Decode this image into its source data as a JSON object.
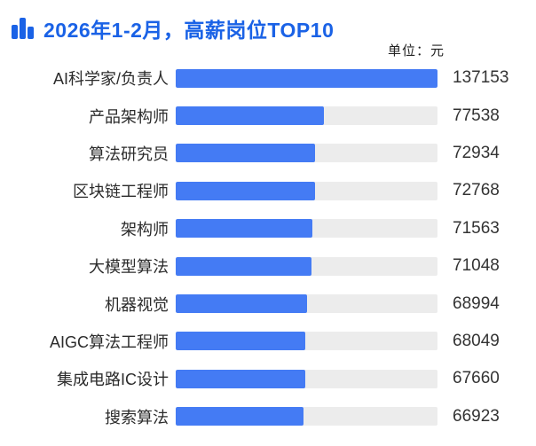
{
  "header": {
    "title": "2026年1-2月，高薪岗位TOP10",
    "unit_label": "单位：元",
    "icon": "bar-chart-icon"
  },
  "colors": {
    "accent": "#1a62e6",
    "bar_fill": "#447bf4",
    "bar_track": "#ececec",
    "label_text": "#2b2b2b",
    "value_text": "#333333",
    "background": "#ffffff"
  },
  "chart_data": {
    "type": "bar",
    "orientation": "horizontal",
    "title": "2026年1-2月，高薪岗位TOP10",
    "unit": "元",
    "categories": [
      "AI科学家/负责人",
      "产品架构师",
      "算法研究员",
      "区块链工程师",
      "架构师",
      "大模型算法",
      "机器视觉",
      "AIGC算法工程师",
      "集成电路IC设计",
      "搜索算法"
    ],
    "values": [
      137153,
      77538,
      72934,
      72768,
      71563,
      71048,
      68994,
      68049,
      67660,
      66923
    ],
    "xlim": [
      0,
      137153
    ],
    "value_labels_shown": true,
    "legend": "none",
    "grid": false
  }
}
